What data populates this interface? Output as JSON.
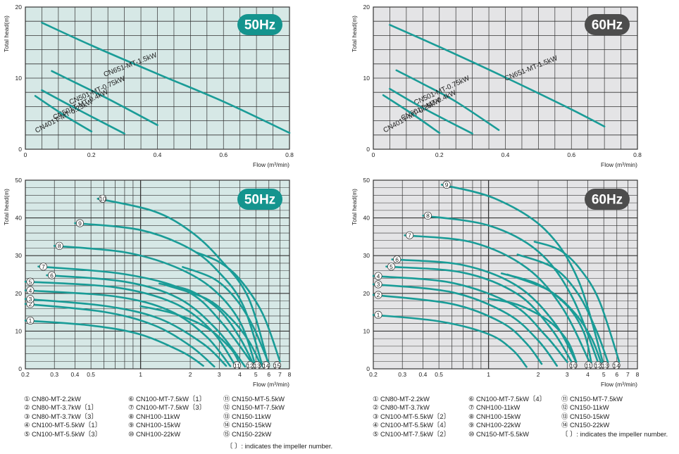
{
  "colors": {
    "curve": "#1a9c97",
    "panel_bg_50": "#d6e8e6",
    "panel_bg_60": "#e4e4e6",
    "badge_50": "#14948e",
    "badge_60": "#4d4d4d",
    "grid": "#333333"
  },
  "chart_data": [
    {
      "type": "line",
      "badge": "50Hz",
      "xlabel": "Flow (m³/min)",
      "ylabel": "Total head(m)",
      "xscale": "linear",
      "xlim": [
        0,
        0.8
      ],
      "ylim": [
        0,
        20
      ],
      "xticks": [
        "0",
        "0.2",
        "0.4",
        "0.6",
        "0.8"
      ],
      "yticks": [
        "0",
        "10",
        "20"
      ],
      "series": [
        {
          "name": "CN651-MT-1.5kW",
          "x": [
            0.05,
            0.2,
            0.4,
            0.6,
            0.8
          ],
          "y": [
            17.8,
            14.6,
            10.6,
            6.7,
            2.3
          ]
        },
        {
          "name": "CN501-MT-0.75kW",
          "x": [
            0.08,
            0.15,
            0.25,
            0.4
          ],
          "y": [
            11.0,
            9.4,
            7.1,
            3.4
          ]
        },
        {
          "name": "CN501T-MT-0.4kW",
          "x": [
            0.05,
            0.15,
            0.3
          ],
          "y": [
            8.3,
            5.8,
            2.2
          ]
        },
        {
          "name": "CN401T-MT-0.25kW",
          "x": [
            0.03,
            0.12,
            0.2
          ],
          "y": [
            7.5,
            4.7,
            2.5
          ]
        }
      ]
    },
    {
      "type": "line",
      "badge": "60Hz",
      "xlabel": "Flow (m³/min)",
      "ylabel": "Total head(m)",
      "xscale": "linear",
      "xlim": [
        0,
        0.8
      ],
      "ylim": [
        0,
        20
      ],
      "xticks": [
        "0",
        "0.2",
        "0.4",
        "0.6",
        "0.8"
      ],
      "yticks": [
        "0",
        "10",
        "20"
      ],
      "series": [
        {
          "name": "CN651-MT-1.5kW",
          "x": [
            0.05,
            0.2,
            0.4,
            0.6,
            0.7
          ],
          "y": [
            17.5,
            14.4,
            10.1,
            5.6,
            3.2
          ]
        },
        {
          "name": "CN501-MT-0.75kW",
          "x": [
            0.07,
            0.15,
            0.25,
            0.38
          ],
          "y": [
            11.1,
            9.2,
            6.7,
            2.7
          ]
        },
        {
          "name": "CN501T-MT-0.4kW",
          "x": [
            0.05,
            0.15,
            0.3
          ],
          "y": [
            8.5,
            5.8,
            2.2
          ]
        },
        {
          "name": "CN401T-MT-0.25kW",
          "x": [
            0.03,
            0.12,
            0.2
          ],
          "y": [
            7.6,
            4.9,
            2.3
          ]
        }
      ]
    },
    {
      "type": "line",
      "badge": "50Hz",
      "xlabel": "Flow (m³/min)",
      "ylabel": "Total head(m)",
      "xscale": "log",
      "xlim": [
        0.2,
        8
      ],
      "ylim": [
        0,
        50
      ],
      "xticks": [
        "0.2",
        "0.3",
        "0.4",
        "0.5",
        "1",
        "2",
        "3",
        "4",
        "5",
        "6",
        "7",
        "8"
      ],
      "yticks": [
        "0",
        "10",
        "20",
        "30",
        "40",
        "50"
      ],
      "series": [
        {
          "name": "①",
          "x": [
            0.2,
            0.5,
            1.0,
            1.8,
            2.4
          ],
          "y": [
            12.8,
            11.5,
            9.1,
            4.4,
            0.8
          ]
        },
        {
          "name": "②",
          "x": [
            0.2,
            0.6,
            1.2,
            2.0,
            2.8
          ],
          "y": [
            17.2,
            15.1,
            11.6,
            6.1,
            0.6
          ]
        },
        {
          "name": "③",
          "x": [
            0.2,
            0.6,
            1.3,
            2.4,
            3.3
          ],
          "y": [
            18.5,
            16.7,
            13.3,
            6.6,
            0.8
          ]
        },
        {
          "name": "④",
          "x": [
            0.2,
            0.7,
            1.5,
            2.5,
            3.5
          ],
          "y": [
            20.8,
            19.2,
            15.4,
            8.6,
            0.7
          ]
        },
        {
          "name": "⑤",
          "x": [
            0.2,
            0.7,
            1.6,
            2.7,
            3.8
          ],
          "y": [
            23.1,
            21.6,
            17.4,
            10.1,
            0.5
          ]
        },
        {
          "name": "⑥",
          "x": [
            0.27,
            0.8,
            1.7,
            2.9,
            4.3
          ],
          "y": [
            24.8,
            23.1,
            18.7,
            10.4,
            0.6
          ]
        },
        {
          "name": "⑦",
          "x": [
            0.24,
            0.8,
            1.9,
            3.1,
            4.9
          ],
          "y": [
            27.1,
            25.1,
            20.6,
            12.3,
            0.6
          ]
        },
        {
          "name": "⑧",
          "x": [
            0.3,
            0.8,
            1.6,
            2.7,
            4.0,
            5.0
          ],
          "y": [
            32.6,
            30.9,
            27.1,
            21.4,
            12.5,
            0.6
          ]
        },
        {
          "name": "⑨",
          "x": [
            0.4,
            1.0,
            2.0,
            3.0,
            4.2,
            5.5
          ],
          "y": [
            38.6,
            36.8,
            31.8,
            25.5,
            16.7,
            0.6
          ]
        },
        {
          "name": "⑩",
          "x": [
            0.55,
            1.2,
            2.0,
            3.0,
            4.5,
            6.0
          ],
          "y": [
            45.1,
            41.8,
            36.5,
            29.3,
            18.9,
            0.7
          ]
        },
        {
          "name": "⑪",
          "x": [
            1.0,
            1.6,
            2.5,
            3.5,
            4.0
          ],
          "y": [
            16.6,
            14.6,
            11.0,
            5.5,
            1.3
          ]
        },
        {
          "name": "⑫",
          "x": [
            1.3,
            2.0,
            3.0,
            4.0,
            4.8
          ],
          "y": [
            22.6,
            20.7,
            15.6,
            8.2,
            1.5
          ]
        },
        {
          "name": "⑬",
          "x": [
            1.4,
            2.5,
            3.5,
            4.5,
            5.3
          ],
          "y": [
            22.3,
            18.6,
            13.5,
            7.6,
            1.5
          ]
        },
        {
          "name": "⑭",
          "x": [
            1.8,
            2.8,
            3.8,
            4.8,
            6.0
          ],
          "y": [
            27.0,
            23.8,
            18.4,
            11.3,
            1.4
          ]
        },
        {
          "name": "⑮",
          "x": [
            2.2,
            3.0,
            4.0,
            5.5,
            7.0
          ],
          "y": [
            30.8,
            28.3,
            23.7,
            14.6,
            2.0
          ]
        }
      ]
    },
    {
      "type": "line",
      "badge": "60Hz",
      "xlabel": "Flow (m³/min)",
      "ylabel": "Total head(m)",
      "xscale": "log",
      "xlim": [
        0.2,
        8
      ],
      "ylim": [
        0,
        50
      ],
      "xticks": [
        "0.2",
        "0.3",
        "0.4",
        "0.5",
        "1",
        "2",
        "3",
        "4",
        "5",
        "6",
        "7",
        "8"
      ],
      "yticks": [
        "0",
        "10",
        "20",
        "30",
        "40",
        "50"
      ],
      "series": [
        {
          "name": "①",
          "x": [
            0.2,
            0.5,
            1.0,
            1.4,
            1.7
          ],
          "y": [
            14.3,
            12.6,
            9.2,
            5.0,
            0.5
          ]
        },
        {
          "name": "②",
          "x": [
            0.2,
            0.6,
            1.2,
            1.7,
            2.1
          ],
          "y": [
            19.6,
            17.2,
            12.3,
            6.7,
            1.3
          ]
        },
        {
          "name": "③",
          "x": [
            0.2,
            0.6,
            1.3,
            2.0,
            2.6
          ],
          "y": [
            22.4,
            20.3,
            14.6,
            7.5,
            0.8
          ]
        },
        {
          "name": "④",
          "x": [
            0.2,
            0.6,
            1.4,
            2.2,
            3.0
          ],
          "y": [
            24.6,
            22.8,
            17.0,
            9.0,
            1.8
          ]
        },
        {
          "name": "⑤",
          "x": [
            0.24,
            0.7,
            1.5,
            2.4,
            3.2
          ],
          "y": [
            27.1,
            25.5,
            19.8,
            10.6,
            1.7
          ]
        },
        {
          "name": "⑥",
          "x": [
            0.26,
            0.7,
            1.5,
            2.5,
            3.4
          ],
          "y": [
            29.0,
            27.5,
            21.9,
            12.3,
            1.8
          ]
        },
        {
          "name": "⑦",
          "x": [
            0.31,
            0.8,
            1.7,
            2.8,
            4.1
          ],
          "y": [
            35.4,
            33.5,
            26.8,
            16.2,
            1.8
          ]
        },
        {
          "name": "⑧",
          "x": [
            0.4,
            1.0,
            2.0,
            3.2,
            4.7
          ],
          "y": [
            40.6,
            38.0,
            31.1,
            19.2,
            0.8
          ]
        },
        {
          "name": "⑨",
          "x": [
            0.52,
            1.1,
            2.2,
            3.5,
            5.0
          ],
          "y": [
            48.8,
            45.1,
            36.9,
            23.5,
            0.9
          ]
        },
        {
          "name": "⑩",
          "x": [
            1.0,
            1.5,
            2.3,
            3.0,
            3.4
          ],
          "y": [
            18.6,
            17.0,
            12.8,
            7.5,
            1.9
          ]
        },
        {
          "name": "⑪",
          "x": [
            1.2,
            2.0,
            3.0,
            3.8,
            4.2
          ],
          "y": [
            25.3,
            22.4,
            16.7,
            9.5,
            1.7
          ]
        },
        {
          "name": "⑫",
          "x": [
            1.3,
            2.3,
            3.3,
            4.2,
            4.8
          ],
          "y": [
            25.0,
            20.9,
            15.0,
            8.2,
            1.8
          ]
        },
        {
          "name": "⑬",
          "x": [
            1.5,
            2.5,
            3.5,
            4.5,
            5.3
          ],
          "y": [
            30.3,
            26.7,
            19.8,
            10.2,
            1.8
          ]
        },
        {
          "name": "⑭",
          "x": [
            1.9,
            2.7,
            3.6,
            4.7,
            6.2
          ],
          "y": [
            33.7,
            31.5,
            26.4,
            18.0,
            1.9
          ]
        }
      ]
    }
  ],
  "legend_50": {
    "col1": [
      "① CN80-MT-2.2kW",
      "② CN80-MT-3.7kW〔1〕",
      "③ CN80-MT-3.7kW〔3〕",
      "④ CN100-MT-5.5kW〔1〕",
      "⑤ CN100-MT-5.5kW〔3〕"
    ],
    "col2": [
      "⑥ CN100-MT-7.5kW〔1〕",
      "⑦ CN100-MT-7.5kW〔3〕",
      "⑧ CNH100-11kW",
      "⑨ CNH100-15kW",
      "⑩ CNH100-22kW"
    ],
    "col3": [
      "⑪ CN150-MT-5.5kW",
      "⑫ CN150-MT-7.5kW",
      "⑬ CN150-11kW",
      "⑭ CN150-15kW",
      "⑮ CN150-22kW"
    ],
    "note": "〔 〕: indicates the impeller number."
  },
  "legend_60": {
    "col1": [
      "① CN80-MT-2.2kW",
      "② CN80-MT-3.7kW",
      "③ CN100-MT-5.5kW〔2〕",
      "④ CN100-MT-5.5kW〔4〕",
      "⑤ CN100-MT-7.5kW〔2〕"
    ],
    "col2": [
      "⑥ CN100-MT-7.5kW〔4〕",
      "⑦ CNH100-11kW",
      "⑧ CNH100-15kW",
      "⑨ CNH100-22kW",
      "⑩ CN150-MT-5.5kW"
    ],
    "col3": [
      "⑪ CN150-MT-7.5kW",
      "⑫ CN150-11kW",
      "⑬ CN150-15kW",
      "⑭ CN150-22kW"
    ],
    "note": "〔 〕: indicates the impeller number."
  }
}
